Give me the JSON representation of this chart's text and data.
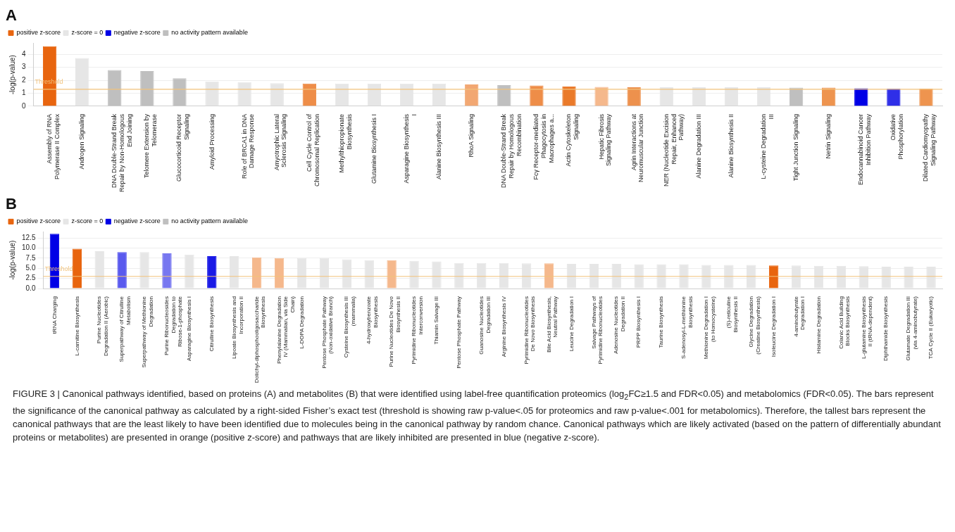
{
  "chart_data": [
    {
      "type": "bar",
      "title": "A",
      "ylabel": "-log(p-value)",
      "categories": [
        "Assembly of RNA Polymerase II Complex",
        "Androgen Signaling",
        "DNA Double-Strand Break Repair by Non-Homologous End Joining",
        "Telomere Extension by Telomerase",
        "Glucocorticoid Receptor Signaling",
        "Amyloid Processing",
        "Role of BRCA1 in DNA Damage Response",
        "Amyotrophic Lateral Sclerosis Signaling",
        "Cell Cycle Control of Chromosomal Replication",
        "Methylthiopropionate Biosynthesis",
        "Glutamine Biosynthesis I",
        "Asparagine Biosynthesis I",
        "Alanine Biosynthesis III",
        "RhoA Signaling",
        "DNA Double-Strand Break Repair by Homologous Recombination",
        "Fcγ Receptor-mediated Phagocytosis in Macrophages a...",
        "Actin Cytoskeleton Signaling",
        "Hepatic Fibrosis Signaling Pathway",
        "Agrin Interactions at Neuromuscular Junction",
        "NER (Nucleotide Excision Repair, Enhanced Pathway)",
        "Alanine Degradation III",
        "Alanine Biosynthesis II",
        "L-cysteine Degradation III",
        "Tight Junction Signaling",
        "Netrin Signaling",
        "Endocannabinoid Cancer Inhibition Pathway",
        "Oxidative Phosphorylation",
        "Dilated Cardiomyopathy Signaling Pathway"
      ],
      "series": [
        {
          "name": "positive z-score",
          "color": "#e8650f",
          "values": [
            4.61,
            null,
            null,
            null,
            null,
            null,
            null,
            null,
            1.75,
            null,
            null,
            null,
            null,
            1.67,
            null,
            1.59,
            1.51,
            1.48,
            1.46,
            null,
            null,
            null,
            null,
            null,
            1.43,
            null,
            null,
            1.35
          ],
          "colors": [
            "#e8650f",
            null,
            null,
            null,
            null,
            null,
            null,
            null,
            "#ee8d48",
            null,
            null,
            null,
            null,
            "#f2a772",
            null,
            "#ee8d48",
            "#ea7a2a",
            "#f5b88c",
            "#ed914d",
            null,
            null,
            null,
            null,
            null,
            "#ee944f",
            null,
            null,
            "#ee944f"
          ]
        },
        {
          "name": "z-score = 0",
          "color": "#e6e6e6",
          "values": [
            null,
            3.71,
            null,
            null,
            null,
            1.91,
            1.85,
            1.77,
            null,
            1.75,
            1.75,
            1.75,
            1.75,
            null,
            null,
            null,
            null,
            null,
            null,
            1.46,
            1.46,
            1.46,
            1.46,
            null,
            null,
            null,
            null,
            null
          ]
        },
        {
          "name": "negative z-score",
          "color": "#0000e6",
          "values": [
            null,
            null,
            null,
            null,
            null,
            null,
            null,
            null,
            null,
            null,
            null,
            null,
            null,
            null,
            null,
            null,
            null,
            null,
            null,
            null,
            null,
            null,
            null,
            null,
            null,
            1.38,
            1.35,
            null
          ],
          "colors": [
            null,
            null,
            null,
            null,
            null,
            null,
            null,
            null,
            null,
            null,
            null,
            null,
            null,
            null,
            null,
            null,
            null,
            null,
            null,
            null,
            null,
            null,
            null,
            null,
            null,
            "#0000e6",
            "#2f2fe8",
            null
          ]
        },
        {
          "name": "no activity pattern available",
          "color": "#bfbfbf",
          "values": [
            null,
            null,
            2.78,
            2.7,
            2.15,
            null,
            null,
            null,
            null,
            null,
            null,
            null,
            null,
            null,
            1.62,
            null,
            null,
            null,
            null,
            null,
            null,
            null,
            null,
            1.43,
            null,
            null,
            null,
            null
          ]
        }
      ],
      "ylim": [
        0,
        4.85
      ],
      "yticks": [
        0,
        1,
        2,
        3,
        4
      ],
      "grid": "y",
      "legend": "top left",
      "ref_lines": [
        {
          "axis": "y",
          "value": 1.3,
          "label": "Threshold",
          "color": "#f2c27a"
        }
      ]
    },
    {
      "type": "bar",
      "title": "B",
      "ylabel": "-log(p-value)",
      "categories": [
        "tRNA Charging",
        "L-carnitine Biosynthesis",
        "Purine Nucleotides Degradation II (Aerobic)",
        "Superpathway of Citrulline Metabolism",
        "Superpathway of Methionine Degradation",
        "Purine Ribonucleosides Degradation to Ribose-1-phosphate",
        "Asparagine Biosynthesis I",
        "Citrulline Biosynthesis",
        "Lipoate Biosynthesis and Incorporation II",
        "Dolichyl-diphosphooligosaccharide Biosynthesis",
        "Phenylalanine Degradation IV (Mammalian, via Side Chain)",
        "L-DOPA Degradation",
        "Pentose Phosphate Pathway (Non-oxidative Branch)",
        "Cysteine Biosynthesis III (mammalia)",
        "4-hydroxybenzoate Biosynthesis",
        "Purine Nucleotides De Novo Biosynthesis II",
        "Pyrimidine Ribonucleotides Interconversion",
        "Thiamin Salvage III",
        "Pentose Phosphate Pathway",
        "Guanosine Nucleotides Degradation III",
        "Arginine Biosynthesis IV",
        "Pyrimidine Ribonucleotides De Novo Biosynthesis",
        "Bile Acid Biosynthesis, Neutral Pathway",
        "Leucine Degradation I",
        "Salvage Pathways of Pyrimidine Ribonucleotides",
        "Adenosine Nucleotides Degradation II",
        "PRPP Biosynthesis I",
        "Taurine Biosynthesis",
        "S-adenosyl-L-methionine Biosynthesis",
        "Methionine Degradation I (to Homocysteine)",
        "(S)-reticuline Biosynthesis II",
        "Glycine Degradation (Creatine Biosynthesis)",
        "Isoleucine Degradation I",
        "4-aminobutyrate Degradation I",
        "Histamine Degradation",
        "Colanic Acid Building Blocks Biosynthesis",
        "L-glutamine Biosynthesis II (tRNA-dependent)",
        "Diphthamide Biosynthesis",
        "Glutamate Degradation III (via 4-aminobutyrate)",
        "TCA Cycle II (Eukaryotic)"
      ],
      "series": [
        {
          "name": "positive z-score",
          "color": "#e8650f",
          "values": [
            null,
            9.8,
            null,
            null,
            null,
            null,
            null,
            null,
            null,
            7.7,
            7.5,
            null,
            null,
            null,
            null,
            7.0,
            null,
            null,
            null,
            null,
            null,
            null,
            6.2,
            null,
            null,
            null,
            null,
            null,
            null,
            null,
            null,
            null,
            5.7,
            null,
            null,
            null,
            null,
            null,
            null,
            null
          ],
          "colors": [
            null,
            "#e8650f",
            null,
            null,
            null,
            null,
            null,
            null,
            null,
            "#f5b88c",
            "#f5b88c",
            null,
            null,
            null,
            null,
            "#f5b88c",
            null,
            null,
            null,
            null,
            null,
            null,
            "#f5b88c",
            null,
            null,
            null,
            null,
            null,
            null,
            null,
            null,
            null,
            "#e8650f",
            null,
            null,
            null,
            null,
            null,
            null,
            null
          ]
        },
        {
          "name": "z-score = 0",
          "color": "#e6e6e6",
          "values": [
            null,
            null,
            9.2,
            null,
            9.0,
            null,
            8.4,
            null,
            8.0,
            null,
            null,
            7.5,
            7.5,
            7.2,
            7.0,
            null,
            6.8,
            6.7,
            6.3,
            6.3,
            6.3,
            6.2,
            null,
            6.1,
            6.1,
            6.1,
            6.0,
            6.0,
            6.0,
            5.8,
            5.8,
            5.8,
            null,
            5.7,
            5.6,
            5.6,
            5.5,
            5.4,
            5.4,
            5.4
          ]
        },
        {
          "name": "negative z-score",
          "color": "#0000e6",
          "values": [
            13.5,
            null,
            null,
            9.0,
            null,
            8.7,
            null,
            8.0,
            null,
            null,
            null,
            null,
            null,
            null,
            null,
            null,
            null,
            null,
            null,
            null,
            null,
            null,
            null,
            null,
            null,
            null,
            null,
            null,
            null,
            null,
            null,
            null,
            null,
            null,
            null,
            null,
            null,
            null,
            null,
            null
          ],
          "colors": [
            "#0000e6",
            null,
            null,
            "#5a5aee",
            null,
            "#7777f0",
            null,
            "#1a1ae6",
            null,
            null,
            null,
            null,
            null,
            null,
            null,
            null,
            null,
            null,
            null,
            null,
            null,
            null,
            null,
            null,
            null,
            null,
            null,
            null,
            null,
            null,
            null,
            null,
            null,
            null,
            null,
            null,
            null,
            null,
            null,
            null
          ]
        },
        {
          "name": "no activity pattern available",
          "color": "#bfbfbf",
          "values": [
            null,
            null,
            null,
            null,
            null,
            null,
            null,
            null,
            null,
            null,
            null,
            null,
            null,
            null,
            null,
            null,
            null,
            null,
            null,
            null,
            null,
            null,
            null,
            null,
            null,
            null,
            null,
            null,
            null,
            null,
            null,
            null,
            null,
            null,
            null,
            null,
            null,
            null,
            null,
            null
          ]
        }
      ],
      "ylim": [
        0,
        14
      ],
      "yticks": [
        {
          "value": 0,
          "label": "0.0"
        },
        {
          "value": 2.5,
          "label": "2.5"
        },
        {
          "value": 5,
          "label": "5.0"
        },
        {
          "value": 7.5,
          "label": "7.5"
        },
        {
          "value": 10,
          "label": "10.0"
        },
        {
          "value": 12.5,
          "label": "12.5"
        }
      ],
      "grid": "y",
      "legend": "top left",
      "ref_lines": [
        {
          "axis": "y",
          "value": 3.0,
          "label": "Threshold",
          "color": "#f2c27a"
        }
      ],
      "annotations": [
        "FIGURE 3 | Canonical pathways identified, based on proteins (A) and metabolites (B) that were identified using label-free quantification proteomics (log$_{2}$FC≥1.5 and FDR<0.05) and metabolomics (FDR<0.05). The bars represent the significance of the canonical pathway as calculated by a right-sided Fisher’s exact test (threshold is showing raw p-value<.05 for proteomics and raw p-value<.001 for metabolomics). Therefore, the tallest bars represent the canonical pathways that are the least likely to have been identified due to molecules being in the canonical pathway by random chance. Canonical pathways which are likely activated (based on the pattern of differentially abundant proteins or metabolites) are presented in orange (positive z-score) and pathways that are likely inhibited are presented in blue (negative z-score)."
      ]
    }
  ]
}
